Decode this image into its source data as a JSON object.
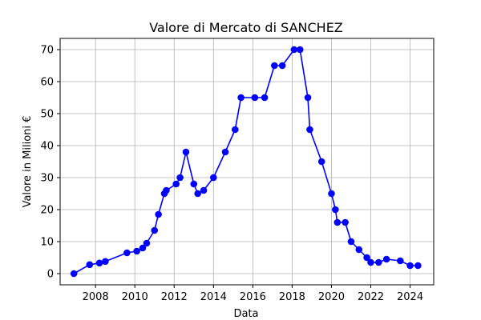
{
  "chart_data": {
    "type": "line",
    "title": "Valore di Mercato di SANCHEZ",
    "xlabel": "Data",
    "ylabel": "Valore in Milioni €",
    "xlim": [
      2006.2,
      2025.2
    ],
    "ylim": [
      -3.5,
      73.5
    ],
    "x_ticks": [
      2008,
      2010,
      2012,
      2014,
      2016,
      2018,
      2020,
      2022,
      2024
    ],
    "y_ticks": [
      0,
      10,
      20,
      30,
      40,
      50,
      60,
      70
    ],
    "grid": true,
    "series_color": "#0000ff",
    "series": [
      {
        "x": [
          2006.9,
          2007.7,
          2008.2,
          2008.5,
          2009.6,
          2010.1,
          2010.4,
          2010.6,
          2011.0,
          2011.2,
          2011.5,
          2011.6,
          2012.1,
          2012.3,
          2012.6,
          2013.0,
          2013.2,
          2013.5,
          2014.0,
          2014.6,
          2015.1,
          2015.4,
          2016.1,
          2016.6,
          2017.1,
          2017.5,
          2018.1,
          2018.4,
          2018.8,
          2018.9,
          2019.5,
          2020.0,
          2020.2,
          2020.3,
          2020.7,
          2021.0,
          2021.4,
          2021.8,
          2022.0,
          2022.4,
          2022.8,
          2023.5,
          2024.0,
          2024.4
        ],
        "y": [
          0,
          2.8,
          3.3,
          3.8,
          6.5,
          7,
          8,
          9.5,
          13.5,
          18.5,
          25,
          26,
          28,
          30,
          38,
          28,
          25,
          26,
          30,
          38,
          45,
          55,
          55,
          55,
          65,
          65,
          70,
          70,
          55,
          45,
          35,
          25,
          20,
          16,
          16,
          10,
          7.5,
          5,
          3.5,
          3.5,
          4.5,
          4,
          2.5,
          2.5
        ]
      }
    ]
  }
}
